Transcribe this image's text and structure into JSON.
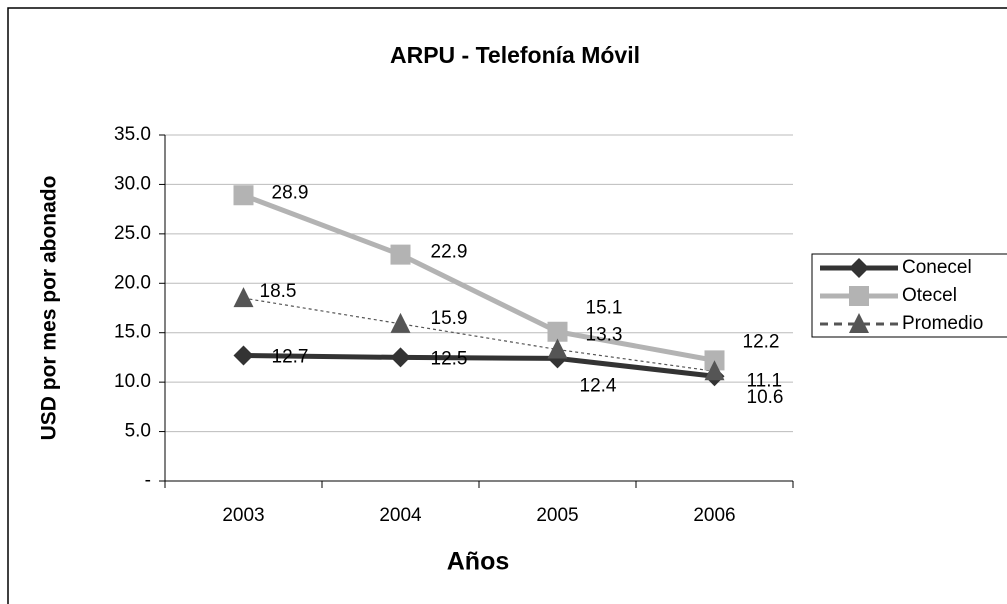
{
  "chart_data": {
    "type": "line",
    "title": "ARPU - Telefonía Móvil",
    "y_label": "USD por mes por abonado",
    "x_label": "Años",
    "categories": [
      "2003",
      "2004",
      "2005",
      "2006"
    ],
    "series": [
      {
        "name": "Conecel",
        "color": "#333333",
        "marker": "diamond",
        "dashed": false,
        "values": [
          12.7,
          12.5,
          12.4,
          10.6
        ]
      },
      {
        "name": "Otecel",
        "color": "#b3b3b3",
        "marker": "square",
        "dashed": false,
        "values": [
          28.9,
          22.9,
          15.1,
          12.2
        ]
      },
      {
        "name": "Promedio",
        "color": "#555555",
        "marker": "triangle",
        "dashed": true,
        "values": [
          18.5,
          15.9,
          13.3,
          11.1
        ]
      }
    ],
    "ylim": [
      0,
      35
    ],
    "yticks": [
      {
        "value": 0,
        "label": "-"
      },
      {
        "value": 5,
        "label": "5.0"
      },
      {
        "value": 10,
        "label": "10.0"
      },
      {
        "value": 15,
        "label": "15.0"
      },
      {
        "value": 20,
        "label": "20.0"
      },
      {
        "value": 25,
        "label": "25.0"
      },
      {
        "value": 30,
        "label": "30.0"
      },
      {
        "value": 35,
        "label": "35.0"
      }
    ],
    "grid": true,
    "legend": "right"
  }
}
